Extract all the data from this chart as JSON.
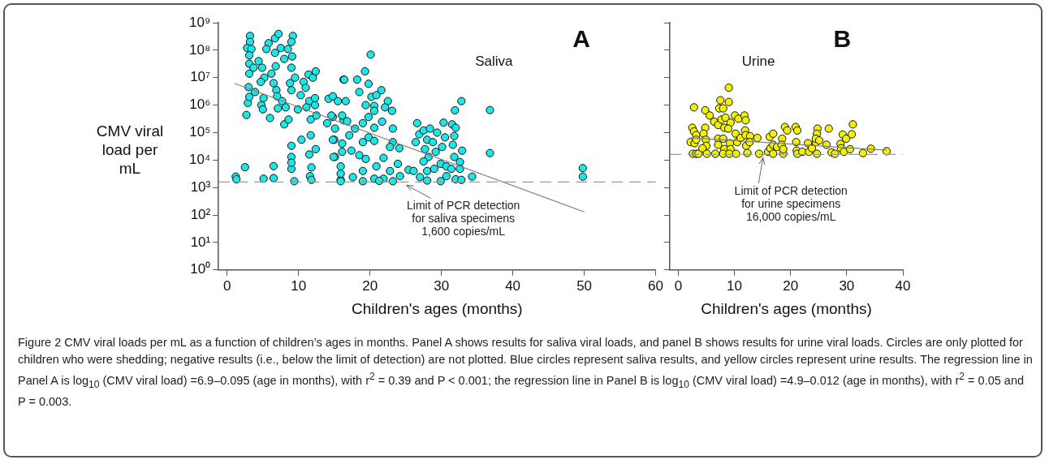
{
  "chart_data": [
    {
      "type": "scatter",
      "ylabel": "CMV viral load per mL",
      "xlabel": "Children's ages (months)",
      "annotations": [
        "A",
        "Saliva"
      ],
      "log": "y",
      "grid": false,
      "legend": false,
      "marker": "circle",
      "xlim": [
        -1.2,
        60
      ],
      "xticks": [
        0,
        10,
        20,
        30,
        40,
        50,
        60
      ],
      "ylim": [
        1,
        1000000000
      ],
      "yticks": [
        {
          "value": 1,
          "label": "10⁰"
        },
        {
          "value": 10,
          "label": "10¹"
        },
        {
          "value": 100,
          "label": "10²"
        },
        {
          "value": 1000,
          "label": "10³"
        },
        {
          "value": 10000,
          "label": "10⁴"
        },
        {
          "value": 100000,
          "label": "10⁵"
        },
        {
          "value": 1000000,
          "label": "10⁶"
        },
        {
          "value": 10000000,
          "label": "10⁷"
        },
        {
          "value": 100000000,
          "label": "10⁸"
        },
        {
          "value": 1000000000,
          "label": "10⁹"
        }
      ],
      "ref_lines": [
        {
          "axis": "y",
          "value": 1600,
          "label": "Limit of PCR detection\nfor saliva specimens\n1,600 copies/mL",
          "color": "#999999",
          "line_style": "dashed"
        }
      ],
      "series": [
        {
          "type": "scatter",
          "color": "#1ee6e6",
          "x": [
            1.2,
            1.3,
            2.5,
            2.7,
            2.9,
            3.2,
            3.2,
            2.8,
            3.4,
            3.1,
            3.1,
            3.7,
            3.1,
            3.0,
            3.1,
            4.4,
            3.9,
            4.9,
            5.2,
            4.7,
            4.8,
            5.1,
            5.0,
            6.0,
            5.1,
            6.5,
            6.5,
            5.8,
            6.7,
            7.2,
            5.5,
            6.7,
            6.5,
            6.9,
            6.2,
            6.8,
            7.5,
            8.0,
            7.0,
            7.1,
            8.0,
            8.2,
            7.7,
            8.5,
            9.2,
            9.0,
            9.1,
            9.0,
            8.8,
            9.0,
            8.6,
            9.0,
            9.0,
            9.0,
            9.4,
            9.0,
            9.5,
            9.9,
            10.3,
            10.7,
            11.0,
            11.4,
            11.5,
            11.1,
            10.4,
            11.7,
            11.5,
            11.6,
            11.7,
            11.8,
            11.8,
            12.3,
            12.0,
            12.4,
            12.3,
            12.5,
            12.4,
            14.0,
            14.2,
            14.8,
            15.0,
            15.1,
            14.8,
            15.9,
            16.1,
            16.3,
            16.3,
            20.1,
            19.3,
            16.4,
            18.2,
            19.8,
            21.6,
            18.5,
            20.2,
            20.9,
            15.5,
            22.5,
            16.6,
            19.4,
            20.6,
            22.1,
            23.1,
            14.6,
            16.1,
            19.8,
            20.6,
            16.8,
            19.0,
            21.7,
            23.2,
            15.1,
            17.9,
            20.6,
            14.8,
            17.1,
            19.8,
            19.0,
            20.6,
            23.2,
            22.8,
            24.1,
            16.1,
            17.4,
            18.5,
            14.9,
            15.9,
            19.4,
            21.9,
            23.9,
            20.9,
            22.8,
            19.0,
            15.9,
            17.6,
            19.0,
            20.6,
            21.9,
            23.2,
            24.2,
            15.9,
            21.3,
            25.4,
            26.1,
            27.0,
            26.6,
            26.4,
            26.9,
            27.5,
            28.0,
            28.4,
            27.7,
            28.2,
            27.5,
            28.0,
            28.0,
            28.8,
            29.4,
            29.2,
            29.9,
            29.0,
            29.9,
            30.3,
            30.5,
            30.1,
            30.7,
            30.7,
            31.5,
            31.8,
            31.6,
            31.8,
            31.4,
            32.0,
            32.8,
            32.9,
            32.0,
            32.8,
            32.6,
            32.6,
            31.9,
            34.3,
            36.8,
            36.8,
            49.8,
            49.8
          ],
          "values": [
            2500,
            2000,
            5500,
            440000,
            1200000,
            330000000,
            200000000,
            120000000,
            110000000,
            65000000,
            32000000,
            23000000,
            14000000,
            4500000,
            2000000,
            40000000,
            3000000,
            23000000,
            10000000,
            7000000,
            1000000,
            1800000,
            700000,
            340000,
            2100,
            6000,
            2200,
            180000000,
            270000000,
            390000000,
            110000000,
            80000000,
            6300000,
            3500000,
            14000000,
            26000000,
            120000000,
            48000000,
            2100000,
            760000,
            200000,
            830000,
            1400000,
            110000000,
            330000000,
            200000000,
            59000000,
            23000000,
            6300000,
            3500000,
            300000,
            33000,
            13000,
            4800,
            1700,
            8000,
            10000000,
            700000,
            2300000,
            7000000,
            4300000,
            13000000,
            1400000,
            830000,
            55000,
            300000,
            16000,
            2600,
            80000,
            5400,
            1900,
            1000000,
            10000000,
            17000000,
            1800000,
            420000,
            25000,
            220000,
            1700000,
            2100000,
            55000,
            13000,
            370000,
            1900,
            40000,
            8500000,
            280000,
            69000000,
            17000000,
            8500000,
            8500000,
            6000000,
            3500000,
            3000000,
            2000000,
            2300000,
            1400000,
            1400000,
            1400000,
            1000000,
            930000,
            830000,
            620000,
            420000,
            420000,
            370000,
            620000,
            260000,
            220000,
            250000,
            140000,
            140000,
            140000,
            150000,
            55000,
            80000,
            67000,
            45000,
            50000,
            45000,
            30000,
            27000,
            20000,
            22000,
            15000,
            13000,
            5900,
            11000,
            12000,
            7300,
            5900,
            4000,
            4000,
            3200,
            2400,
            1700,
            2100,
            2100,
            1700,
            2600,
            1700,
            1750,
            4400,
            4000,
            2400,
            220000,
            45000,
            87000,
            120000,
            55000,
            140000,
            25000,
            13000,
            8900,
            4000,
            1800,
            45000,
            100000,
            20000,
            7300,
            4800,
            1700,
            230000,
            67000,
            30000,
            5900,
            2600,
            200000,
            75000,
            36000,
            13000,
            4800,
            2000,
            1900,
            22000,
            150000,
            1400000,
            8500,
            4800,
            650000,
            2500,
            660000,
            18000,
            5100,
            2500
          ]
        },
        {
          "type": "line",
          "color": "#808080",
          "marker": "none",
          "x": [
            1,
            50
          ],
          "values": [
            6200000,
            130
          ]
        }
      ]
    },
    {
      "type": "scatter",
      "xlabel": "Children's ages (months)",
      "annotations": [
        "B",
        "Urine",
        "Figure 2 CMV viral loads per mL as a function of children’s ages in months. Panel A shows results for saliva viral loads, and panel B shows results for urine viral loads. Circles are only plotted for children who were shedding; negative results (i.e., below the limit of detection) are not plotted. Blue circles represent saliva results, and yellow circles represent urine results. The regression line in Panel A is log$_{10}$ (CMV viral load) =6.9–0.095 (age in months), with r$^{2}$ = 0.39 and P < 0.001; the regression line in Panel B is log$_{10}$ (CMV viral load) =4.9–0.012 (age in months), with r$^{2}$ = 0.05 and P = 0.003."
      ],
      "log": "y",
      "grid": false,
      "legend": false,
      "marker": "circle",
      "tick_labels": "x",
      "xlim": [
        -1.5,
        40
      ],
      "xticks": [
        0,
        10,
        20,
        30,
        40
      ],
      "ylim": [
        1,
        1000000000
      ],
      "yticks": [
        {
          "value": 1,
          "label": null
        },
        {
          "value": 10,
          "label": null
        },
        {
          "value": 100,
          "label": null
        },
        {
          "value": 1000,
          "label": null
        },
        {
          "value": 10000,
          "label": null
        },
        {
          "value": 100000,
          "label": null
        },
        {
          "value": 1000000,
          "label": null
        },
        {
          "value": 10000000,
          "label": null
        },
        {
          "value": 100000000,
          "label": null
        },
        {
          "value": 1000000000,
          "label": null
        }
      ],
      "ref_lines": [
        {
          "axis": "y",
          "value": 16000,
          "label": "Limit of PCR detection\nfor urine specimens\n16,000 copies/mL",
          "color": "#999999",
          "line_style": "dashed"
        }
      ],
      "series": [
        {
          "type": "scatter",
          "color": "#f2f200",
          "x": [
            2.8,
            2.5,
            2.8,
            2.2,
            2.9,
            2.6,
            3.2,
            3.2,
            3.2,
            3.6,
            4.8,
            4.8,
            4.5,
            4.9,
            5.0,
            4.3,
            5.1,
            5.6,
            6.4,
            7.1,
            6.6,
            7.1,
            7.1,
            7.3,
            7.5,
            8.0,
            7.7,
            8.2,
            8.0,
            8.2,
            8.0,
            8.4,
            9.0,
            9.0,
            9.3,
            8.9,
            9.2,
            9.3,
            9.1,
            10.1,
            10.7,
            10.2,
            10.5,
            10.3,
            11.1,
            11.8,
            12.0,
            11.9,
            12.0,
            12.1,
            12.3,
            12.8,
            12.7,
            14.1,
            14.4,
            16.0,
            16.3,
            16.9,
            16.4,
            16.9,
            16.9,
            17.6,
            18.5,
            18.4,
            18.7,
            19.0,
            19.4,
            18.7,
            20.9,
            21.2,
            21.0,
            21.1,
            21.2,
            22.1,
            23.1,
            23.3,
            23.8,
            24.5,
            24.8,
            24.7,
            24.5,
            24.7,
            25.1,
            26.4,
            26.8,
            27.3,
            27.9,
            28.9,
            29.0,
            29.3,
            29.9,
            29.5,
            30.6,
            30.9,
            31.1,
            32.9,
            34.3,
            37.1
          ],
          "values": [
            830000,
            150000,
            110000,
            45000,
            41000,
            17000,
            17000,
            81000,
            55000,
            17000,
            650000,
            150000,
            92000,
            55000,
            33000,
            27000,
            17000,
            420000,
            250000,
            190000,
            17000,
            60000,
            36000,
            760000,
            1500000,
            760000,
            300000,
            150000,
            60000,
            25000,
            17000,
            350000,
            4300000,
            1300000,
            230000,
            140000,
            41000,
            25000,
            17000,
            420000,
            320000,
            92000,
            45000,
            17000,
            64000,
            420000,
            280000,
            120000,
            81000,
            33000,
            18000,
            74000,
            45000,
            64000,
            17000,
            20000,
            70000,
            91000,
            27000,
            36000,
            17000,
            30000,
            60000,
            36000,
            17000,
            160000,
            120000,
            25000,
            160000,
            120000,
            45000,
            22000,
            17000,
            20000,
            41000,
            20000,
            27000,
            45000,
            140000,
            91000,
            60000,
            17000,
            52000,
            36000,
            140000,
            19000,
            17000,
            39000,
            27000,
            85000,
            60000,
            20000,
            25000,
            87000,
            200000,
            18000,
            26000,
            21000
          ]
        },
        {
          "type": "line",
          "color": "#808080",
          "marker": "none",
          "x": [
            2.2,
            37.1
          ],
          "values": [
            65000,
            23000
          ]
        }
      ]
    }
  ]
}
